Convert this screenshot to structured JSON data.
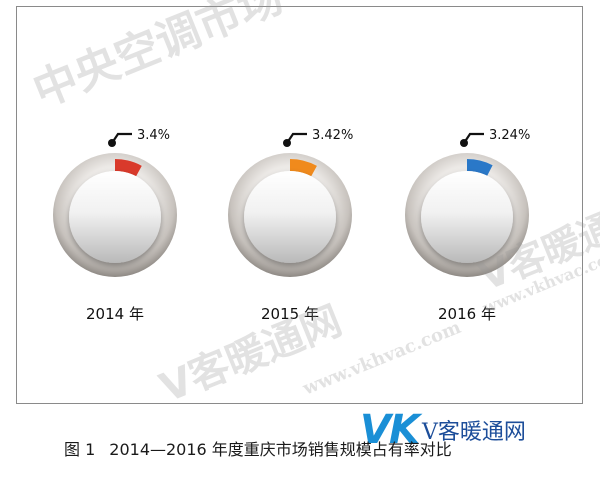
{
  "chart_data": {
    "type": "pie",
    "series": [
      {
        "category": "2014 年",
        "value": 3.4,
        "label": "3.4%",
        "color": "#d93a2b"
      },
      {
        "category": "2015 年",
        "value": 3.42,
        "label": "3.42%",
        "color": "#f08a1c"
      },
      {
        "category": "2016 年",
        "value": 3.24,
        "label": "3.24%",
        "color": "#2a78c8"
      }
    ]
  },
  "caption": {
    "figure_number": "图 1",
    "text": "2014—2016 年度重庆市场销售规模占有率对比"
  },
  "watermarks": {
    "top": "中央空调市场",
    "middle": "V客暖通网",
    "url": "www.vkhvac.com",
    "right": "V客暖通网",
    "right_url": "www.vkhvac.com"
  },
  "logo": {
    "mark": "VK",
    "name": "V客暖通网"
  }
}
